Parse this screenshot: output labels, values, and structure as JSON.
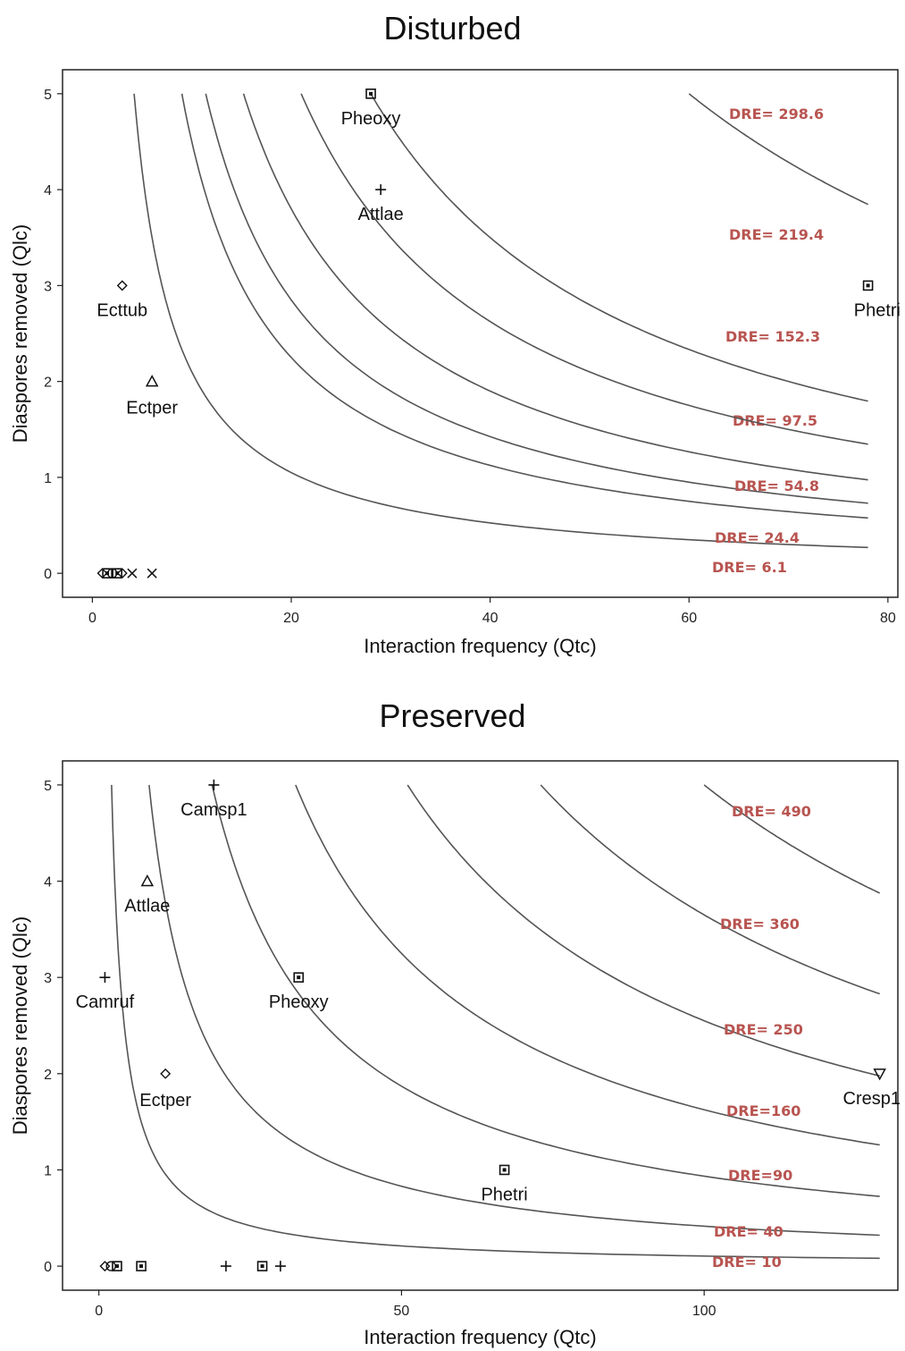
{
  "chart_data": [
    {
      "type": "scatter",
      "title": "Disturbed",
      "xlabel": "Interaction frequency (Qtc)",
      "ylabel": "Diaspores removed (Qlc)",
      "xlim": [
        -3,
        81
      ],
      "ylim": [
        -0.25,
        5.25
      ],
      "xticks": [
        0,
        20,
        40,
        60,
        80
      ],
      "yticks": [
        0,
        1,
        2,
        3,
        4,
        5
      ],
      "isolines": [
        {
          "label": "DRE= 6.1",
          "value": 6.1
        },
        {
          "label": "DRE= 24.4",
          "value": 24.4
        },
        {
          "label": "DRE= 54.8",
          "value": 54.8
        },
        {
          "label": "DRE= 97.5",
          "value": 97.5
        },
        {
          "label": "DRE= 152.3",
          "value": 152.3
        },
        {
          "label": "DRE= 219.4",
          "value": 219.4
        },
        {
          "label": "DRE= 298.6",
          "value": 298.6
        }
      ],
      "labeled_points": [
        {
          "name": "Pheoxy",
          "x": 28,
          "y": 5,
          "marker": "square"
        },
        {
          "name": "Attlae",
          "x": 29,
          "y": 4,
          "marker": "plus"
        },
        {
          "name": "Ecttub",
          "x": 3,
          "y": 3,
          "marker": "diamond"
        },
        {
          "name": "Ectper",
          "x": 6,
          "y": 2,
          "marker": "triangle"
        },
        {
          "name": "Phetri",
          "x": 78,
          "y": 3,
          "marker": "square"
        }
      ],
      "unlabeled_points": [
        {
          "x": 1,
          "y": 0,
          "marker": "diamond"
        },
        {
          "x": 1.5,
          "y": 0,
          "marker": "square"
        },
        {
          "x": 2,
          "y": 0,
          "marker": "circle"
        },
        {
          "x": 2.5,
          "y": 0,
          "marker": "square"
        },
        {
          "x": 3,
          "y": 0,
          "marker": "diamond"
        },
        {
          "x": 4,
          "y": 0,
          "marker": "cross"
        },
        {
          "x": 6,
          "y": 0,
          "marker": "cross"
        }
      ],
      "dre_color": "#b85450"
    },
    {
      "type": "scatter",
      "title": "Preserved",
      "xlabel": "Interaction frequency (Qtc)",
      "ylabel": "Diaspores removed (Qlc)",
      "xlim": [
        -6,
        132
      ],
      "ylim": [
        -0.25,
        5.25
      ],
      "xticks": [
        0,
        50,
        100
      ],
      "yticks": [
        0,
        1,
        2,
        3,
        4,
        5
      ],
      "isolines": [
        {
          "label": "DRE= 10",
          "value": 10
        },
        {
          "label": "DRE= 40",
          "value": 40
        },
        {
          "label": "DRE=90",
          "value": 90
        },
        {
          "label": "DRE=160",
          "value": 160
        },
        {
          "label": "DRE= 250",
          "value": 250
        },
        {
          "label": "DRE= 360",
          "value": 360
        },
        {
          "label": "DRE= 490",
          "value": 490
        }
      ],
      "labeled_points": [
        {
          "name": "Camsp1",
          "x": 19,
          "y": 5,
          "marker": "plus"
        },
        {
          "name": "Attlae",
          "x": 8,
          "y": 4,
          "marker": "triangle"
        },
        {
          "name": "Camruf",
          "x": 1,
          "y": 3,
          "marker": "plus"
        },
        {
          "name": "Pheoxy",
          "x": 33,
          "y": 3,
          "marker": "square"
        },
        {
          "name": "Ectper",
          "x": 11,
          "y": 2,
          "marker": "diamond"
        },
        {
          "name": "Cresp1",
          "x": 129,
          "y": 2,
          "marker": "triangle-down"
        },
        {
          "name": "Phetri",
          "x": 67,
          "y": 1,
          "marker": "square"
        }
      ],
      "unlabeled_points": [
        {
          "x": 1,
          "y": 0,
          "marker": "diamond"
        },
        {
          "x": 2,
          "y": 0,
          "marker": "circle"
        },
        {
          "x": 3,
          "y": 0,
          "marker": "square"
        },
        {
          "x": 7,
          "y": 0,
          "marker": "square"
        },
        {
          "x": 21,
          "y": 0,
          "marker": "plus"
        },
        {
          "x": 27,
          "y": 0,
          "marker": "square"
        },
        {
          "x": 30,
          "y": 0,
          "marker": "plus"
        }
      ],
      "dre_color": "#b85450"
    }
  ]
}
